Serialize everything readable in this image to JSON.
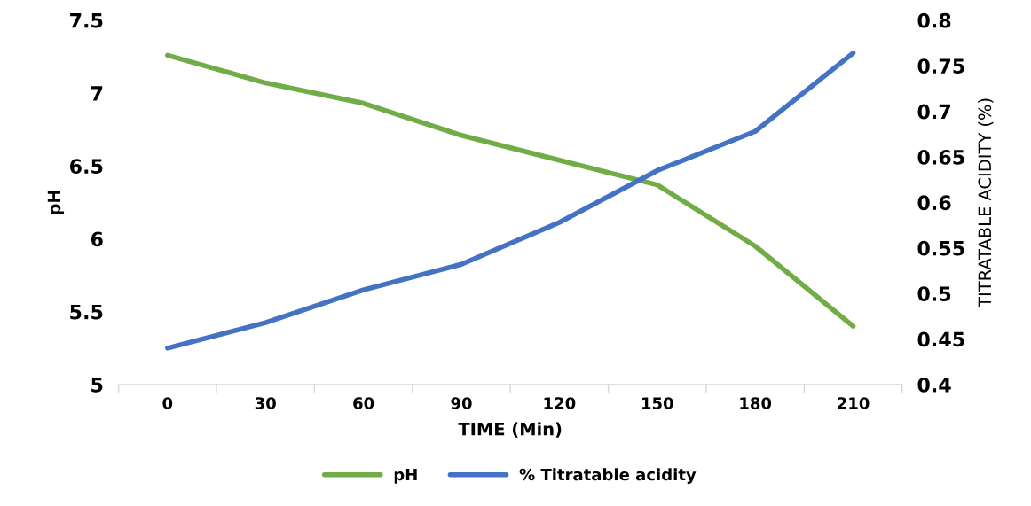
{
  "chart_data": {
    "type": "line",
    "xlabel": "TIME (Min)",
    "ylabel": "pH",
    "y2label": "TITRATABLE ACIDITY (%)",
    "categories": [
      "0",
      "30",
      "60",
      "90",
      "120",
      "150",
      "180",
      "210"
    ],
    "ylim": [
      5,
      7.5
    ],
    "yticks": [
      5,
      5.5,
      6,
      6.5,
      7,
      7.5
    ],
    "y2lim": [
      0.4,
      0.8
    ],
    "y2ticks": [
      0.4,
      0.45,
      0.5,
      0.55,
      0.6,
      0.65,
      0.7,
      0.75,
      0.8
    ],
    "grid": false,
    "legend": "bottom",
    "marker": "none",
    "line_style": "solid",
    "series": [
      {
        "name": "pH",
        "color": "#70ad47",
        "values": [
          7.26,
          7.07,
          6.93,
          6.71,
          6.54,
          6.37,
          5.95,
          5.4
        ]
      },
      {
        "name": "% Titratable acidity",
        "color": "#4472c4",
        "axis": "y2",
        "values": [
          0.44,
          0.468,
          0.504,
          0.532,
          0.578,
          0.635,
          0.678,
          0.764
        ]
      }
    ]
  }
}
